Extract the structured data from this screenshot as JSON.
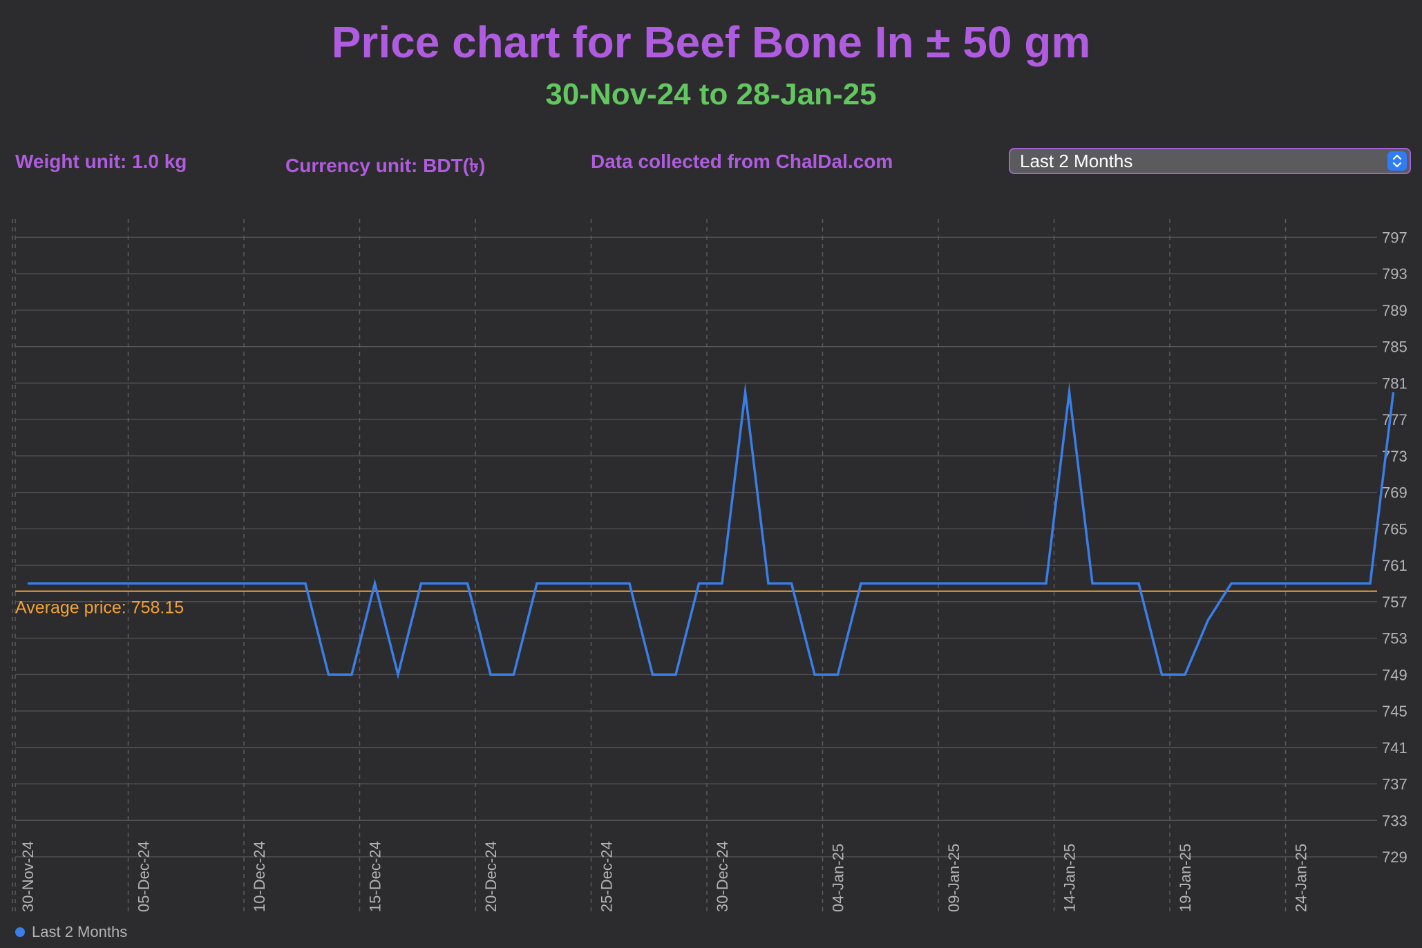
{
  "header": {
    "title": "Price chart for Beef Bone In ± 50 gm",
    "subtitle": "30-Nov-24 to 28-Jan-25"
  },
  "info": {
    "weight_unit": "Weight unit: 1.0 kg",
    "currency_unit": "Currency unit: BDT(৳)",
    "source": "Data collected from ChalDal.com"
  },
  "period_selector": {
    "value": "Last 2 Months"
  },
  "colors": {
    "title": "#b05ce0",
    "subtitle": "#63c760",
    "line": "#3a7ee8",
    "average": "#f0a33a",
    "background": "#2c2b2d"
  },
  "chart_data": {
    "type": "line",
    "x_start": "30-Nov-24",
    "x_tick_labels": [
      "30-Nov-24",
      "05-Dec-24",
      "10-Dec-24",
      "15-Dec-24",
      "20-Dec-24",
      "25-Dec-24",
      "30-Dec-24",
      "04-Jan-25",
      "09-Jan-25",
      "14-Jan-25",
      "19-Jan-25",
      "24-Jan-25"
    ],
    "y_ticks": [
      729,
      733,
      737,
      741,
      745,
      749,
      753,
      757,
      761,
      765,
      769,
      773,
      777,
      781,
      785,
      789,
      793,
      797
    ],
    "ylim": [
      729,
      799
    ],
    "grid": true,
    "legend_position": "bottom-left",
    "average_label": "Average price: 758.15",
    "average_value": 758.15,
    "series": [
      {
        "name": "Last 2 Months",
        "x": [
          "30-Nov-24",
          "01-Dec-24",
          "02-Dec-24",
          "03-Dec-24",
          "04-Dec-24",
          "05-Dec-24",
          "06-Dec-24",
          "07-Dec-24",
          "08-Dec-24",
          "09-Dec-24",
          "10-Dec-24",
          "11-Dec-24",
          "12-Dec-24",
          "13-Dec-24",
          "14-Dec-24",
          "15-Dec-24",
          "16-Dec-24",
          "17-Dec-24",
          "18-Dec-24",
          "19-Dec-24",
          "20-Dec-24",
          "21-Dec-24",
          "22-Dec-24",
          "23-Dec-24",
          "24-Dec-24",
          "25-Dec-24",
          "26-Dec-24",
          "27-Dec-24",
          "28-Dec-24",
          "29-Dec-24",
          "30-Dec-24",
          "31-Dec-24",
          "01-Jan-25",
          "02-Jan-25",
          "03-Jan-25",
          "04-Jan-25",
          "05-Jan-25",
          "06-Jan-25",
          "07-Jan-25",
          "08-Jan-25",
          "09-Jan-25",
          "10-Jan-25",
          "11-Jan-25",
          "12-Jan-25",
          "13-Jan-25",
          "14-Jan-25",
          "15-Jan-25",
          "16-Jan-25",
          "17-Jan-25",
          "18-Jan-25",
          "19-Jan-25",
          "20-Jan-25",
          "21-Jan-25",
          "22-Jan-25",
          "23-Jan-25",
          "24-Jan-25",
          "25-Jan-25",
          "26-Jan-25",
          "27-Jan-25",
          "28-Jan-25"
        ],
        "values": [
          759,
          759,
          759,
          759,
          759,
          759,
          759,
          759,
          759,
          759,
          759,
          759,
          759,
          749,
          749,
          759,
          749,
          759,
          759,
          759,
          749,
          749,
          759,
          759,
          759,
          759,
          759,
          749,
          749,
          759,
          759,
          780,
          759,
          759,
          749,
          749,
          759,
          759,
          759,
          759,
          759,
          759,
          759,
          759,
          759,
          780,
          759,
          759,
          759,
          749,
          749,
          755,
          759,
          759,
          759,
          759,
          759,
          759,
          759,
          780
        ]
      }
    ]
  },
  "legend": {
    "label": "Last 2 Months"
  }
}
